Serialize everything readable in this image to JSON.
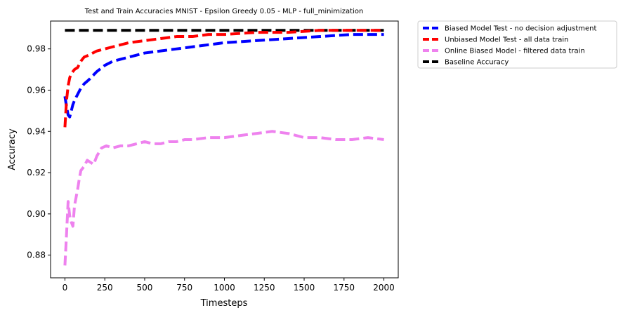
{
  "chart_data": {
    "type": "line",
    "title": "Test and Train Accuracies MNIST - Epsilon Greedy 0.05 - MLP - full_minimization",
    "xlabel": "Timesteps",
    "ylabel": "Accuracy",
    "xlim": [
      -90,
      2090
    ],
    "ylim": [
      0.869,
      0.9935
    ],
    "xticks": [
      0,
      250,
      500,
      750,
      1000,
      1250,
      1500,
      1750,
      2000
    ],
    "yticks": [
      0.88,
      0.9,
      0.92,
      0.94,
      0.96,
      0.98
    ],
    "ytick_labels": [
      "0.88",
      "0.90",
      "0.92",
      "0.94",
      "0.96",
      "0.98"
    ],
    "legend_position": "outside-top-right",
    "grid": false,
    "series": [
      {
        "name": "Biased Model Test - no decision adjustment",
        "color": "#0000ff",
        "x": [
          0,
          10,
          20,
          30,
          40,
          50,
          60,
          80,
          100,
          120,
          150,
          200,
          250,
          300,
          400,
          500,
          600,
          700,
          800,
          900,
          1000,
          1200,
          1400,
          1600,
          1800,
          2000
        ],
        "y": [
          0.957,
          0.952,
          0.948,
          0.947,
          0.95,
          0.953,
          0.955,
          0.958,
          0.961,
          0.963,
          0.965,
          0.969,
          0.972,
          0.974,
          0.976,
          0.978,
          0.979,
          0.98,
          0.981,
          0.982,
          0.983,
          0.984,
          0.985,
          0.986,
          0.987,
          0.987
        ]
      },
      {
        "name": "Unbiased Model Test - all data train",
        "color": "#ff0000",
        "x": [
          0,
          10,
          20,
          30,
          40,
          50,
          60,
          80,
          100,
          120,
          150,
          200,
          250,
          300,
          400,
          500,
          600,
          700,
          800,
          900,
          1000,
          1200,
          1400,
          1600,
          1800,
          2000
        ],
        "y": [
          0.942,
          0.955,
          0.962,
          0.966,
          0.968,
          0.969,
          0.97,
          0.971,
          0.974,
          0.976,
          0.977,
          0.979,
          0.98,
          0.981,
          0.983,
          0.984,
          0.985,
          0.986,
          0.986,
          0.987,
          0.987,
          0.988,
          0.988,
          0.989,
          0.989,
          0.989
        ]
      },
      {
        "name": "Online Biased Model - filtered data train",
        "color": "#ee82ee",
        "x": [
          0,
          10,
          20,
          30,
          40,
          50,
          60,
          70,
          80,
          90,
          100,
          120,
          140,
          160,
          180,
          200,
          230,
          260,
          300,
          350,
          400,
          450,
          500,
          550,
          600,
          650,
          700,
          750,
          800,
          900,
          1000,
          1100,
          1200,
          1300,
          1400,
          1500,
          1600,
          1700,
          1800,
          1900,
          2000
        ],
        "y": [
          0.875,
          0.89,
          0.906,
          0.899,
          0.896,
          0.894,
          0.904,
          0.908,
          0.912,
          0.917,
          0.921,
          0.923,
          0.926,
          0.925,
          0.924,
          0.928,
          0.932,
          0.933,
          0.932,
          0.933,
          0.933,
          0.934,
          0.935,
          0.934,
          0.934,
          0.935,
          0.935,
          0.936,
          0.936,
          0.937,
          0.937,
          0.938,
          0.939,
          0.94,
          0.939,
          0.937,
          0.937,
          0.936,
          0.936,
          0.937,
          0.936
        ]
      },
      {
        "name": "Baseline Accuracy",
        "color": "#000000",
        "x": [
          0,
          2000
        ],
        "y": [
          0.989,
          0.989
        ]
      }
    ]
  }
}
